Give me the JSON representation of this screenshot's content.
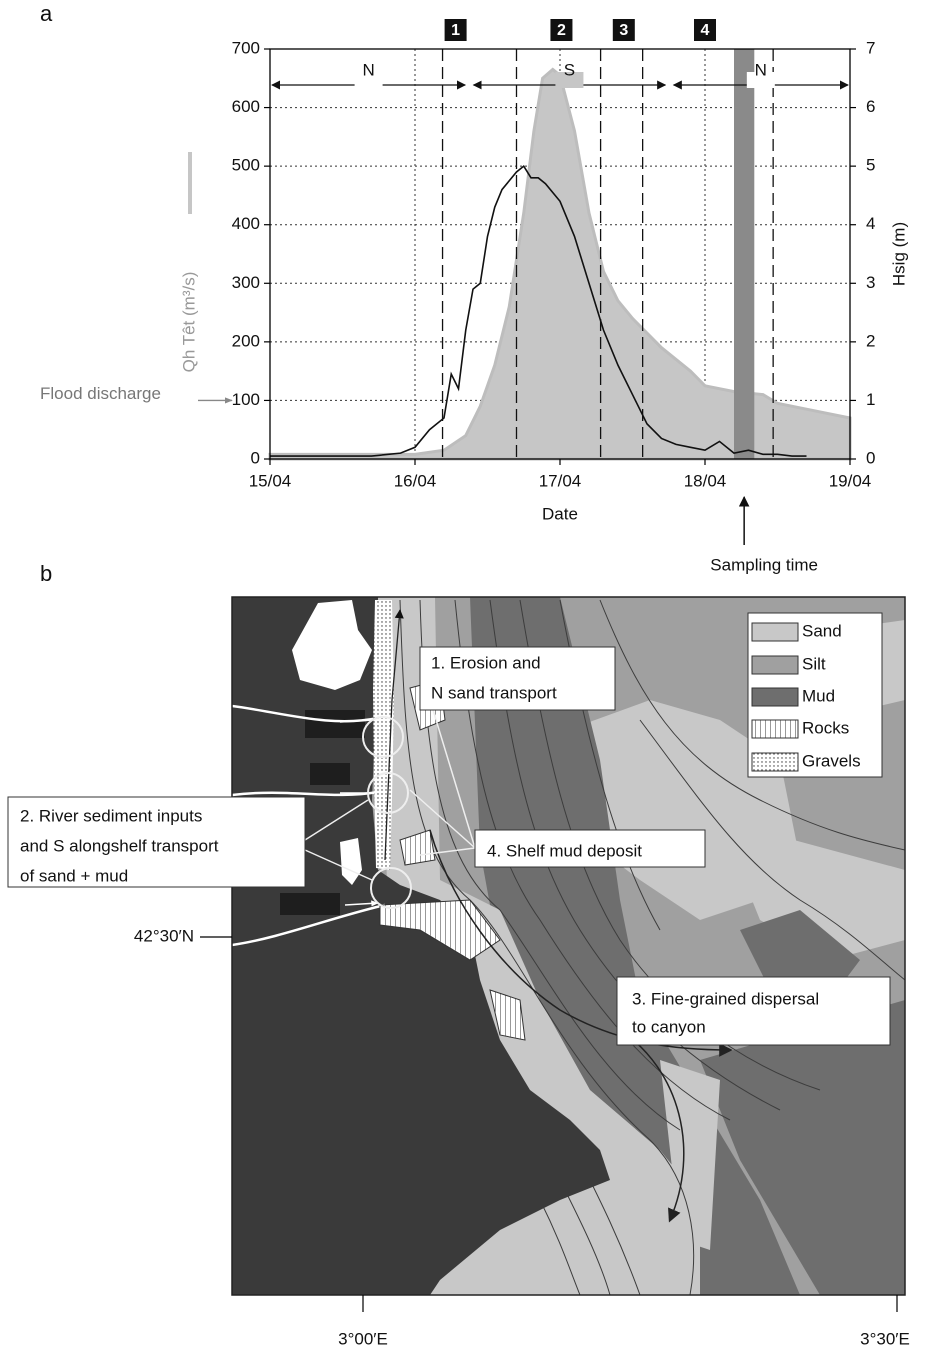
{
  "chart_data": {
    "type": "line",
    "panel_label": "a",
    "xlabel": "Date",
    "ylabel": "Qh Têt (m³/s)",
    "y2label": "Hsig (m)",
    "xlim": [
      0,
      4
    ],
    "xticks": [
      {
        "value": 0,
        "label": "15/04"
      },
      {
        "value": 1,
        "label": "16/04"
      },
      {
        "value": 2,
        "label": "17/04"
      },
      {
        "value": 3,
        "label": "18/04"
      },
      {
        "value": 4,
        "label": "19/04"
      }
    ],
    "ylim": [
      0,
      700
    ],
    "yticks": [
      0,
      100,
      200,
      300,
      400,
      500,
      600,
      700
    ],
    "y2lim": [
      0,
      7
    ],
    "y2ticks": [
      0,
      1,
      2,
      3,
      4,
      5,
      6,
      7
    ],
    "grid": true,
    "series": [
      {
        "name": "Qh Têt",
        "type": "area",
        "color": "#c6c6c6",
        "x": [
          0,
          1.0,
          1.2,
          1.35,
          1.45,
          1.55,
          1.65,
          1.75,
          1.82,
          1.88,
          1.95,
          2.0,
          2.1,
          2.2,
          2.3,
          2.4,
          2.5,
          2.7,
          2.9,
          3.0,
          3.2,
          3.4,
          3.5,
          3.7,
          4.0
        ],
        "values": [
          8,
          8,
          15,
          40,
          90,
          160,
          260,
          420,
          560,
          650,
          665,
          655,
          560,
          420,
          320,
          270,
          240,
          190,
          150,
          125,
          115,
          110,
          95,
          85,
          70
        ]
      },
      {
        "name": "Hsig",
        "type": "line",
        "axis": "y2",
        "color": "#111111",
        "x": [
          0,
          0.7,
          0.9,
          1.0,
          1.1,
          1.2,
          1.25,
          1.3,
          1.35,
          1.4,
          1.45,
          1.5,
          1.55,
          1.6,
          1.65,
          1.7,
          1.75,
          1.8,
          1.85,
          1.9,
          2.0,
          2.1,
          2.2,
          2.3,
          2.4,
          2.5,
          2.6,
          2.7,
          2.8,
          2.9,
          3.0,
          3.1,
          3.2,
          3.3,
          3.4,
          3.5,
          3.6,
          3.7
        ],
        "values": [
          0.05,
          0.05,
          0.1,
          0.2,
          0.5,
          0.7,
          1.45,
          1.2,
          2.2,
          2.9,
          3.0,
          3.8,
          4.3,
          4.6,
          4.75,
          4.9,
          5.0,
          4.8,
          4.8,
          4.7,
          4.4,
          3.8,
          3.0,
          2.2,
          1.6,
          1.1,
          0.6,
          0.35,
          0.25,
          0.2,
          0.15,
          0.3,
          0.1,
          0.15,
          0.08,
          0.08,
          0.05,
          0.05
        ]
      }
    ],
    "dashed_lines": [
      1.19,
      1.7,
      2.28,
      2.57,
      3.47
    ],
    "markers": [
      {
        "label": "1",
        "x": 1.28
      },
      {
        "label": "2",
        "x": 2.01
      },
      {
        "label": "3",
        "x": 2.44
      },
      {
        "label": "4",
        "x": 3.0
      }
    ],
    "phases": [
      {
        "label": "N",
        "from": 0,
        "to": 1.36
      },
      {
        "label": "S",
        "from": 1.39,
        "to": 2.74
      },
      {
        "label": "N",
        "from": 2.77,
        "to": 4
      }
    ],
    "sampling": {
      "label": "Sampling time",
      "from": 3.2,
      "to": 3.34
    },
    "flood_discharge": {
      "label": "Flood discharge",
      "value": 100
    }
  },
  "map": {
    "panel_label": "b",
    "legend": [
      "Sand",
      "Silt",
      "Mud",
      "Rocks",
      "Gravels"
    ],
    "annotations": [
      {
        "lines": [
          "1. Erosion and",
          "N sand transport"
        ]
      },
      {
        "lines": [
          "2. River sediment inputs",
          "and S alongshelf transport",
          "of sand + mud"
        ]
      },
      {
        "lines": [
          "3. Fine-grained dispersal",
          "to canyon"
        ]
      },
      {
        "lines": [
          "4. Shelf mud deposit"
        ]
      }
    ],
    "latitude_label": "42°30′N",
    "longitude_labels": [
      "3°00′E",
      "3°30′E"
    ]
  }
}
